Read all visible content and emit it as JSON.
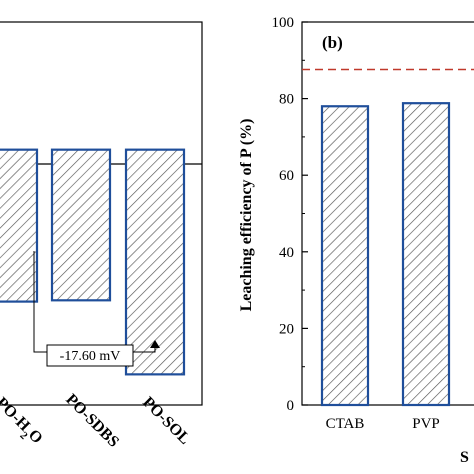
{
  "chart_data": [
    {
      "type": "bar",
      "panel": "a",
      "categories": [
        "PO-H2O",
        "PO-SDBS",
        "PO-SOL"
      ],
      "category_labels": [
        {
          "main": "PO-H",
          "sub": "2",
          "tail": "O"
        },
        {
          "main": "PO-SDBS",
          "sub": "",
          "tail": ""
        },
        {
          "main": "PO-SOL",
          "sub": "",
          "tail": ""
        }
      ],
      "values": [
        -11.9,
        -11.8,
        -17.6
      ],
      "ylim": [
        -20,
        10
      ],
      "annotation": "-17.60 mV",
      "colors": {
        "bar_edge": "#1f4e9a",
        "hatch": "#555555",
        "axis": "#000000"
      }
    },
    {
      "type": "bar",
      "panel": "b",
      "panel_label": "(b)",
      "categories": [
        "CTAB",
        "PVP"
      ],
      "values": [
        78.0,
        78.8
      ],
      "ylabel": "Leaching efficiency of P (%)",
      "xlabel": "S",
      "ylim": [
        0,
        100
      ],
      "yticks": [
        "0",
        "20",
        "40",
        "60",
        "80",
        "100"
      ],
      "reference_line": 87.6,
      "colors": {
        "bar_edge": "#1f4e9a",
        "hatch": "#555555",
        "axis": "#000000",
        "reference": "#c0392b"
      }
    }
  ]
}
